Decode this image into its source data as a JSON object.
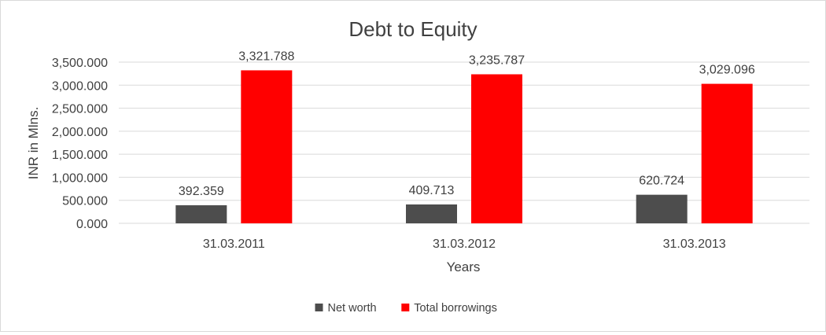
{
  "chart_data": {
    "type": "bar",
    "title": "Debt to Equity",
    "xlabel": "Years",
    "ylabel": "INR in Mlns.",
    "categories": [
      "31.03.2011",
      "31.03.2012",
      "31.03.2013"
    ],
    "series": [
      {
        "name": "Net worth",
        "color": "#4d4d4d",
        "values": [
          392.359,
          409.713,
          620.724
        ],
        "labels": [
          "392.359",
          "409.713",
          "620.724"
        ]
      },
      {
        "name": "Total borrowings",
        "color": "#ff0000",
        "values": [
          3321.788,
          3235.787,
          3029.096
        ],
        "labels": [
          "3,321.788",
          "3,235.787",
          "3,029.096"
        ]
      }
    ],
    "ylim": [
      0,
      3500
    ],
    "yticks": [
      0,
      500,
      1000,
      1500,
      2000,
      2500,
      3000,
      3500
    ],
    "ytick_labels": [
      "0.000",
      "500.000",
      "1,000.000",
      "1,500.000",
      "2,000.000",
      "2,500.000",
      "3,000.000",
      "3,500.000"
    ],
    "grid": true,
    "legend_position": "bottom",
    "gridline_color": "#d9d9d9",
    "text_color": "#404040"
  }
}
